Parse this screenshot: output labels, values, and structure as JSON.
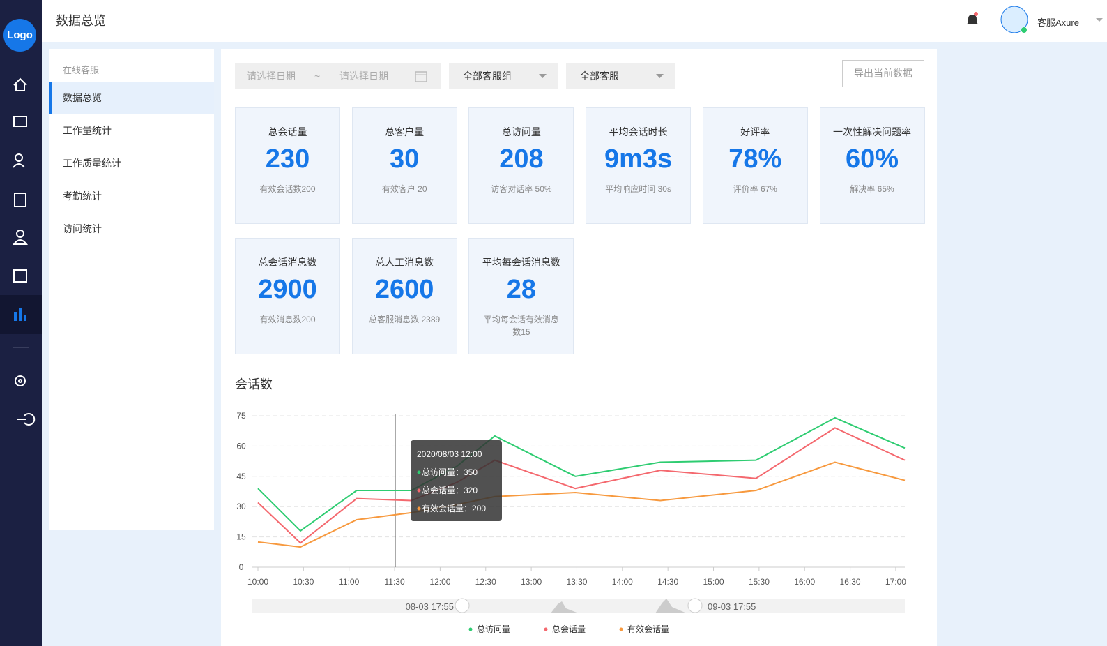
{
  "logo": "Logo",
  "header": {
    "title": "数据总览",
    "user": "客服Axure"
  },
  "menu": {
    "section": "在线客服",
    "items": [
      "数据总览",
      "工作量统计",
      "工作质量统计",
      "考勤统计",
      "访问统计"
    ]
  },
  "filters": {
    "start": "请选择日期",
    "separator": "~",
    "end": "请选择日期",
    "group": "全部客服组",
    "agent": "全部客服",
    "export": "导出当前数据"
  },
  "cards": [
    {
      "title": "总会话量",
      "value": "230",
      "note": "有效会话数200"
    },
    {
      "title": "总客户量",
      "value": "30",
      "note": "有效客户 20"
    },
    {
      "title": "总访问量",
      "value": "208",
      "note": "访客对话率 50%"
    },
    {
      "title": "平均会话时长",
      "value": "9m3s",
      "note": "平均响应时间 30s"
    },
    {
      "title": "好评率",
      "value": "78%",
      "note": "评价率 67%"
    },
    {
      "title": "一次性解决问题率",
      "value": "60%",
      "note": "解决率 65%"
    },
    {
      "title": "总会话消息数",
      "value": "2900",
      "note": "有效消息数200"
    },
    {
      "title": "总人工消息数",
      "value": "2600",
      "note": "总客服消息数 2389"
    },
    {
      "title": "平均每会话消息数",
      "value": "28",
      "note": "平均每会话有效消息数15"
    }
  ],
  "chart_data": {
    "type": "line",
    "title": "会话数",
    "x": [
      0,
      28,
      65,
      101,
      131,
      156,
      209,
      265,
      328,
      380,
      426
    ],
    "xlim": [
      0,
      426
    ],
    "xticks": [
      {
        "value": 0,
        "label": "10:00"
      },
      {
        "value": 30,
        "label": "10:30"
      },
      {
        "value": 60,
        "label": "11:00"
      },
      {
        "value": 90,
        "label": "11:30"
      },
      {
        "value": 120,
        "label": "12:00"
      },
      {
        "value": 150,
        "label": "12:30"
      },
      {
        "value": 180,
        "label": "13:00"
      },
      {
        "value": 210,
        "label": "13:30"
      },
      {
        "value": 240,
        "label": "14:00"
      },
      {
        "value": 270,
        "label": "14:30"
      },
      {
        "value": 300,
        "label": "15:00"
      },
      {
        "value": 330,
        "label": "15:30"
      },
      {
        "value": 360,
        "label": "16:00"
      },
      {
        "value": 390,
        "label": "16:30"
      },
      {
        "value": 420,
        "label": "17:00"
      }
    ],
    "ylim": [
      0,
      75
    ],
    "yticks": [
      0,
      15,
      30,
      45,
      60,
      75
    ],
    "grid": true,
    "series": [
      {
        "name": "总访问量",
        "color": "#2ecc71",
        "values": [
          39,
          18,
          38,
          38,
          50,
          65,
          45,
          52,
          53,
          74,
          59
        ]
      },
      {
        "name": "总会话量",
        "color": "#f4686e",
        "values": [
          32,
          12,
          34,
          33,
          42,
          53,
          39,
          48,
          44,
          69,
          53
        ]
      },
      {
        "name": "有效会话量",
        "color": "#f7993e",
        "values": [
          12.5,
          10,
          23.5,
          27,
          31,
          35,
          37,
          33,
          38,
          52,
          43
        ]
      }
    ],
    "tooltip": {
      "title": "2020/08/03 12:00",
      "items": [
        "总访问量：350",
        "总会话量：320",
        "有效会话量：200"
      ]
    },
    "slider": {
      "start": "08-03 17:55",
      "end": "09-03 17:55"
    }
  }
}
